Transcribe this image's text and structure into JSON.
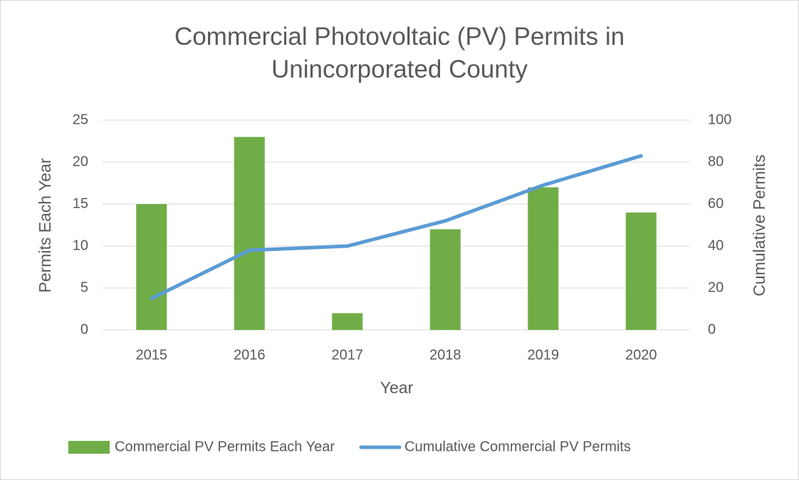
{
  "chart_data": {
    "type": "bar",
    "title": "Commercial Photovoltaic (PV) Permits in Unincorporated County",
    "x_label": "Year",
    "y_label": "Permits Each Year",
    "y2_label": "Cumulative Permits",
    "categories": [
      "2015",
      "2016",
      "2017",
      "2018",
      "2019",
      "2020"
    ],
    "series": [
      {
        "name": "Commercial PV Permits Each Year",
        "type": "bar",
        "color": "#70ad47",
        "values": [
          15,
          23,
          2,
          12,
          17,
          14
        ]
      },
      {
        "name": "Cumulative Commercial PV Permits",
        "type": "line",
        "axis": "y2",
        "color": "#5b9bd5",
        "values": [
          15,
          38,
          40,
          52,
          69,
          83
        ]
      }
    ],
    "ylim": [
      0,
      25
    ],
    "yticks": [
      0,
      5,
      10,
      15,
      20,
      25
    ],
    "y2lim": [
      0,
      100
    ],
    "y2ticks": [
      0,
      20,
      40,
      60,
      80,
      100
    ],
    "grid": true,
    "legend": "bottom"
  }
}
